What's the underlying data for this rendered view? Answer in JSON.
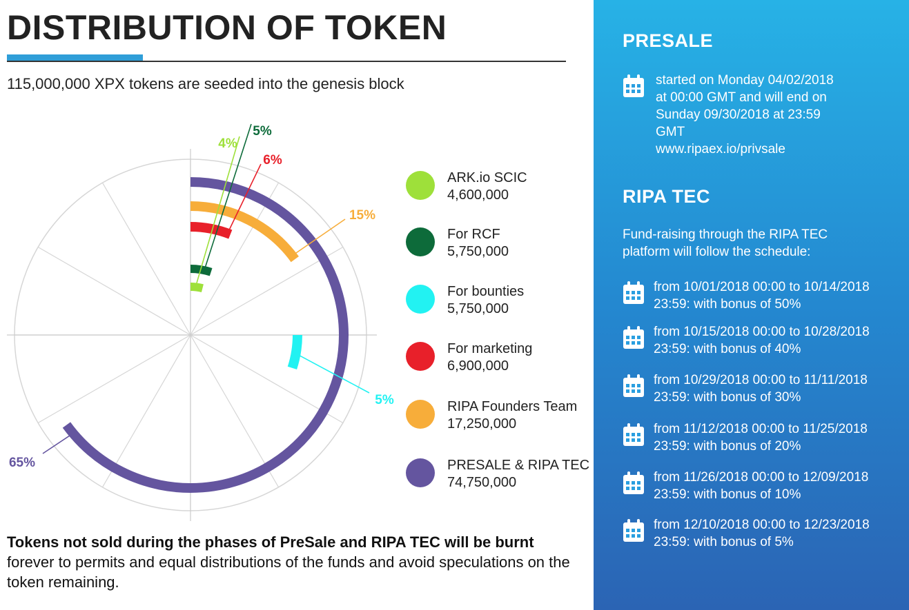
{
  "header": {
    "title": "DISTRIBUTION OF TOKEN",
    "subtitle": "115,000,000 XPX tokens are seeded into the genesis block"
  },
  "chart_data": {
    "type": "pie",
    "total": 115000000,
    "series": [
      {
        "name": "ARK.io SCIC",
        "value": 4600000,
        "value_label": "4,600,000",
        "percent": 4,
        "percent_label": "4%",
        "color": "#9ee03a"
      },
      {
        "name": "For RCF",
        "value": 5750000,
        "value_label": "5,750,000",
        "percent": 5,
        "percent_label": "5%",
        "color": "#0d6b3a"
      },
      {
        "name": "For bounties",
        "value": 5750000,
        "value_label": "5,750,000",
        "percent": 5,
        "percent_label": "5%",
        "color": "#22f2f2"
      },
      {
        "name": "For marketing",
        "value": 6900000,
        "value_label": "6,900,000",
        "percent": 6,
        "percent_label": "6%",
        "color": "#e8202a"
      },
      {
        "name": "RIPA Founders Team",
        "value": 17250000,
        "value_label": "17,250,000",
        "percent": 15,
        "percent_label": "15%",
        "color": "#f7ad3a"
      },
      {
        "name": "PRESALE & RIPA TEC",
        "value": 74750000,
        "value_label": "74,750,000",
        "percent": 65,
        "percent_label": "65%",
        "color": "#64559f"
      }
    ]
  },
  "footer": {
    "bold": "Tokens not sold during the phases of PreSale and RIPA TEC will be burnt",
    "rest": "forever to permits and equal distributions of the funds and avoid speculations on the token remaining."
  },
  "panel": {
    "presale_heading": "PRESALE",
    "presale_lines": [
      "started on Monday 04/02/2018",
      "at 00:00 GMT and will end on",
      "Sunday 09/30/2018 at 23:59",
      "GMT",
      "www.ripaex.io/privsale"
    ],
    "ripa_heading": "RIPA TEC",
    "ripa_intro_lines": [
      "Fund-raising through the RIPA TEC",
      "platform will follow the schedule:"
    ],
    "schedule": [
      {
        "line1": "from 10/01/2018 00:00 to 10/14/2018",
        "line2": "23:59: with bonus of 50%"
      },
      {
        "line1": "from 10/15/2018 00:00 to 10/28/2018",
        "line2": "23:59: with bonus of 40%"
      },
      {
        "line1": "from 10/29/2018 00:00 to 11/11/2018",
        "line2": "23:59: with bonus of 30%"
      },
      {
        "line1": "from 11/12/2018 00:00 to 11/25/2018",
        "line2": "23:59: with bonus of 20%"
      },
      {
        "line1": "from 11/26/2018 00:00 to 12/09/2018",
        "line2": "23:59: with bonus of 10%"
      },
      {
        "line1": "from 12/10/2018 00:00 to 12/23/2018",
        "line2": "23:59: with bonus of 5%"
      }
    ],
    "icon": "calendar-icon",
    "text_color": "#ffffff"
  }
}
